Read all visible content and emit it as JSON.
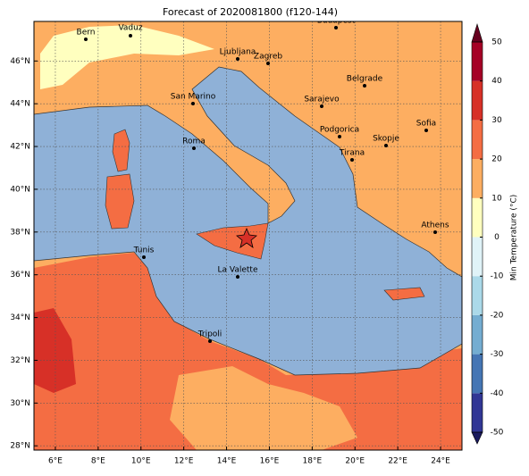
{
  "chart_data": {
    "type": "map",
    "title": "Forecast of 2020081800 (f120-144)",
    "xlim": [
      5,
      25
    ],
    "ylim": [
      27.8,
      47.85
    ],
    "xticks": [
      {
        "value": 6,
        "label": "6°E"
      },
      {
        "value": 8,
        "label": "8°E"
      },
      {
        "value": 10,
        "label": "10°E"
      },
      {
        "value": 12,
        "label": "12°E"
      },
      {
        "value": 14,
        "label": "14°E"
      },
      {
        "value": 16,
        "label": "16°E"
      },
      {
        "value": 18,
        "label": "18°E"
      },
      {
        "value": 20,
        "label": "20°E"
      },
      {
        "value": 22,
        "label": "22°E"
      },
      {
        "value": 24,
        "label": "24°E"
      }
    ],
    "yticks": [
      {
        "value": 28,
        "label": "28°N"
      },
      {
        "value": 30,
        "label": "30°N"
      },
      {
        "value": 32,
        "label": "32°N"
      },
      {
        "value": 34,
        "label": "34°N"
      },
      {
        "value": 36,
        "label": "36°N"
      },
      {
        "value": 38,
        "label": "38°N"
      },
      {
        "value": 40,
        "label": "40°N"
      },
      {
        "value": 42,
        "label": "42°N"
      },
      {
        "value": 44,
        "label": "44°N"
      },
      {
        "value": 46,
        "label": "46°N"
      }
    ],
    "grid": true,
    "cities": [
      "Bern",
      "Vaduz",
      "Budapest",
      "Ljubljana",
      "Zagreb",
      "Belgrade",
      "San Marino",
      "Sarajevo",
      "Sofia",
      "Podgorica",
      "Skopje",
      "Roma",
      "Tirana",
      "Athens",
      "Tunis",
      "La Valette",
      "Tripoli"
    ],
    "colorbar": {
      "label": "Min Temperature (°C)",
      "lim": [
        -50,
        50
      ],
      "ticks": [
        -50,
        -40,
        -30,
        -20,
        -10,
        0,
        10,
        20,
        30,
        40,
        50
      ],
      "colors": [
        "#313695",
        "#4575b4",
        "#74add1",
        "#abd9e9",
        "#e0f3f8",
        "#ffffbf",
        "#fdae61",
        "#f46d43",
        "#d73027",
        "#a50026"
      ],
      "under_color": "#1a1a5e",
      "over_color": "#67001f"
    }
  }
}
